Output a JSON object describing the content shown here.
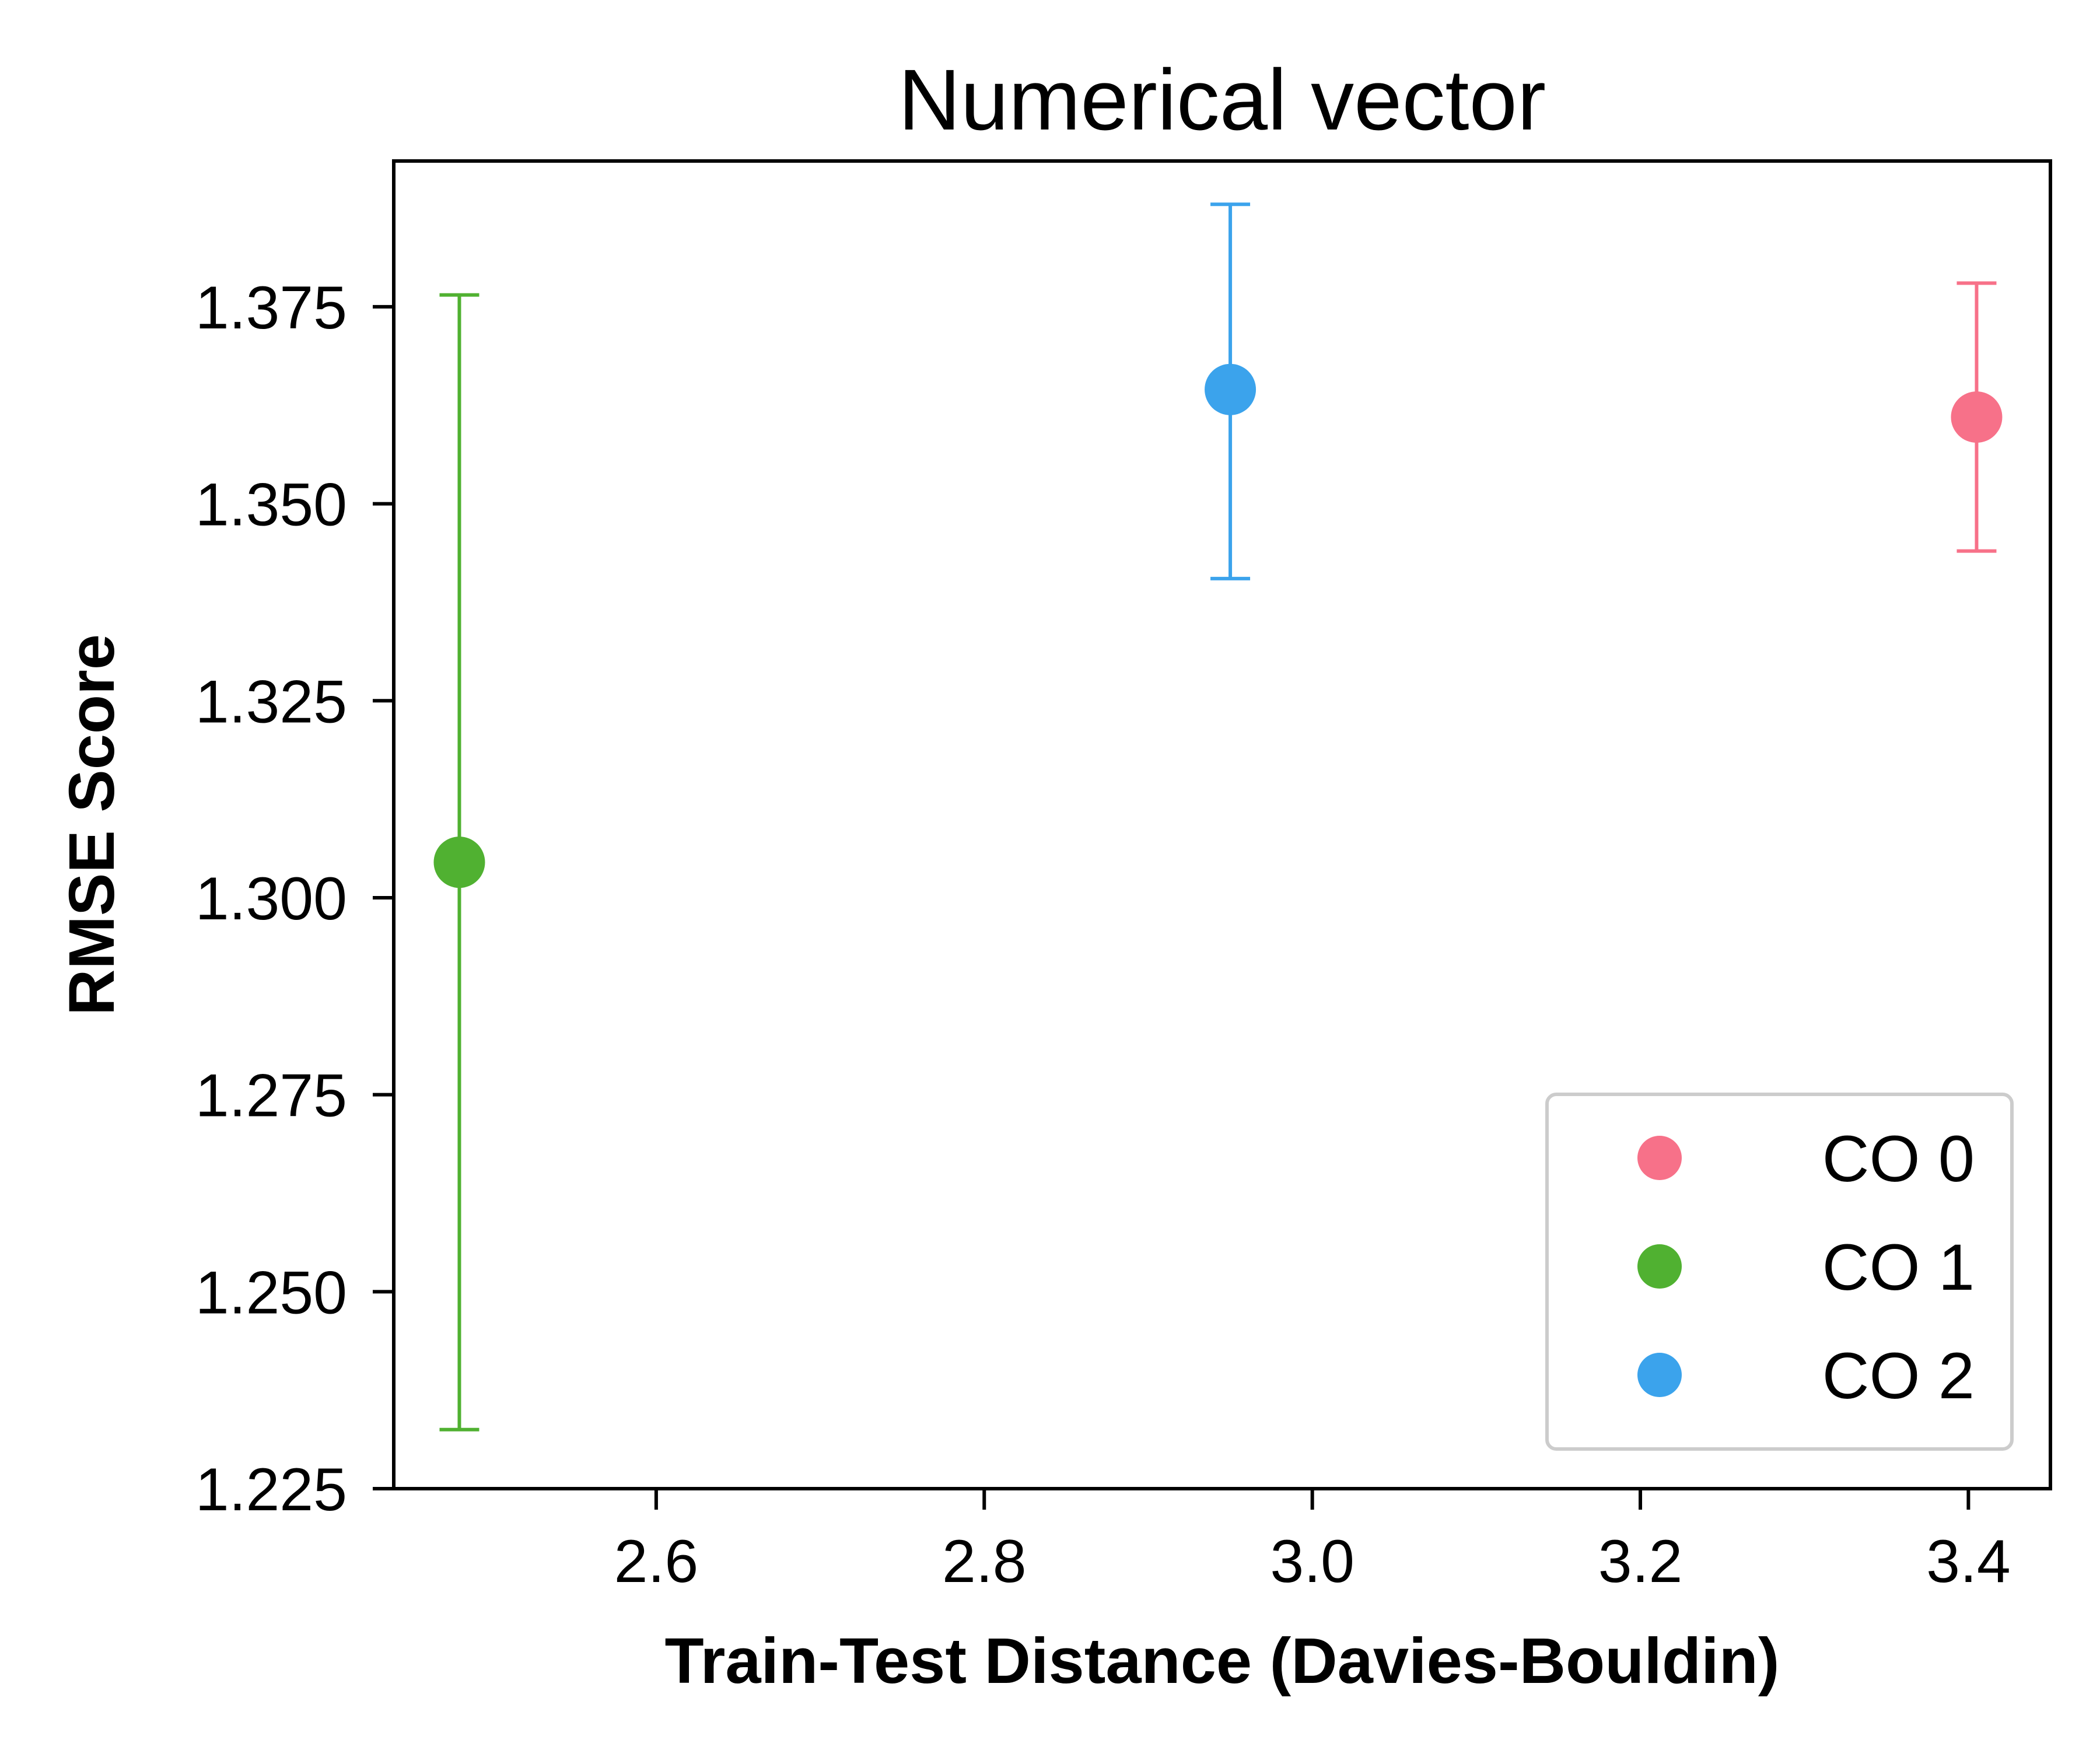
{
  "chart_data": {
    "type": "scatter",
    "title": "Numerical vector",
    "xlabel": "Train-Test Distance (Davies-Bouldin)",
    "ylabel": "RMSE Score",
    "xlim": [
      2.44,
      3.45
    ],
    "ylim": [
      1.225,
      1.3935
    ],
    "xticks": [
      2.6,
      2.8,
      3.0,
      3.2,
      3.4
    ],
    "xtick_labels": [
      "2.6",
      "2.8",
      "3.0",
      "3.2",
      "3.4"
    ],
    "yticks": [
      1.225,
      1.25,
      1.275,
      1.3,
      1.325,
      1.35,
      1.375
    ],
    "ytick_labels": [
      "1.225",
      "1.250",
      "1.275",
      "1.300",
      "1.325",
      "1.350",
      "1.375"
    ],
    "grid": false,
    "legend_position": "lower-right",
    "series": [
      {
        "name": "CO 0",
        "color": "#f77189",
        "x": 3.405,
        "y": 1.361,
        "yerr_low": 1.344,
        "yerr_high": 1.378
      },
      {
        "name": "CO 1",
        "color": "#50b131",
        "x": 2.48,
        "y": 1.3045,
        "yerr_low": 1.2325,
        "yerr_high": 1.3765
      },
      {
        "name": "CO 2",
        "color": "#3ba3ec",
        "x": 2.95,
        "y": 1.3645,
        "yerr_low": 1.3405,
        "yerr_high": 1.388
      }
    ]
  }
}
